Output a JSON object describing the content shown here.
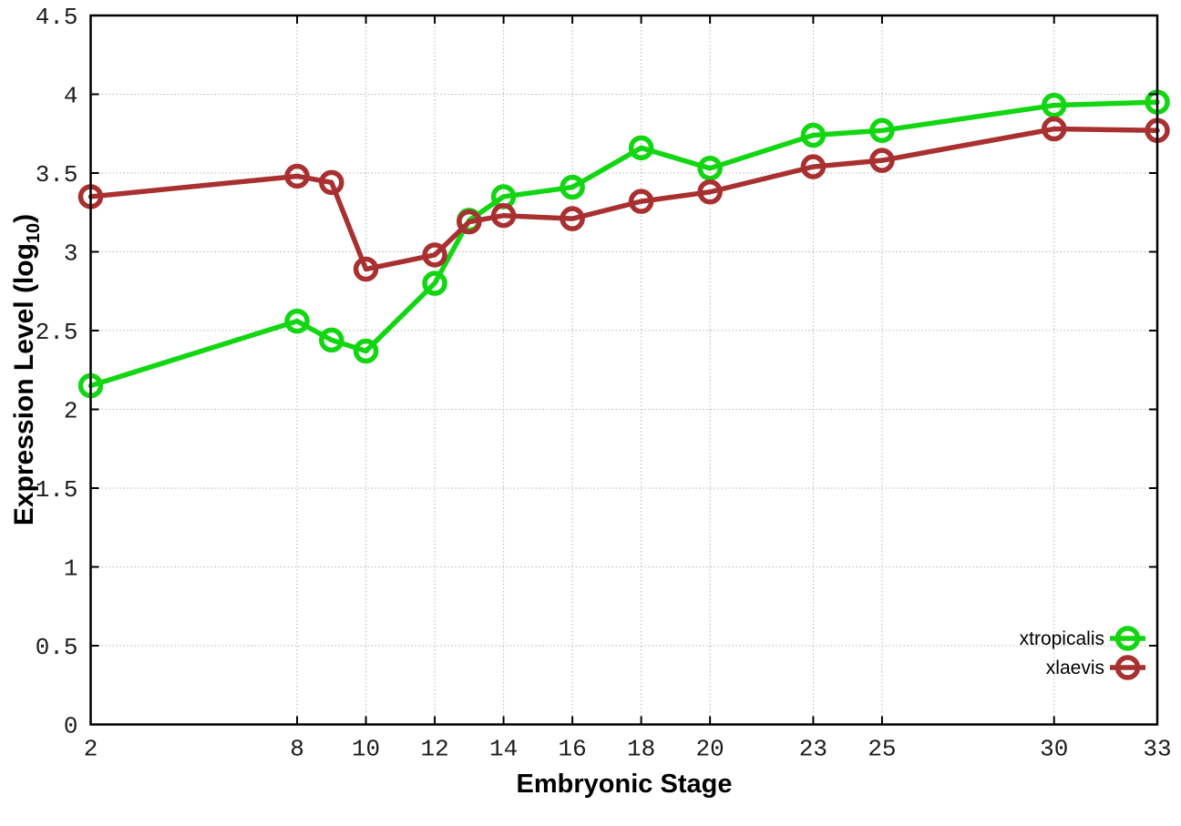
{
  "figure": {
    "background": "#ffffff",
    "xlabel": "Embryonic Stage",
    "ylabel_prefix": "Expression Level (log",
    "ylabel_sub": "10",
    "ylabel_suffix": ")"
  },
  "chart_data": {
    "type": "line",
    "title": "",
    "xlabel": "Embryonic Stage",
    "ylabel": "Expression Level (log10)",
    "grid": true,
    "legend_position": "bottom-right",
    "xlim": [
      2,
      33
    ],
    "ylim": [
      0,
      4.5
    ],
    "xticks": [
      2,
      8,
      10,
      12,
      14,
      16,
      18,
      20,
      23,
      25,
      30,
      33
    ],
    "yticks": [
      0,
      0.5,
      1,
      1.5,
      2,
      2.5,
      3,
      3.5,
      4,
      4.5
    ],
    "x": [
      2,
      8,
      9,
      10,
      12,
      13,
      14,
      16,
      18,
      20,
      23,
      25,
      30,
      33
    ],
    "series": [
      {
        "name": "xtropicalis",
        "color": "#12d612",
        "marker": "open-circle",
        "values": [
          2.15,
          2.56,
          2.44,
          2.37,
          2.8,
          3.2,
          3.35,
          3.41,
          3.66,
          3.53,
          3.74,
          3.77,
          3.93,
          3.95
        ]
      },
      {
        "name": "xlaevis",
        "color": "#a93030",
        "marker": "open-circle",
        "values": [
          3.35,
          3.48,
          3.44,
          2.89,
          2.98,
          3.19,
          3.23,
          3.21,
          3.32,
          3.38,
          3.54,
          3.58,
          3.78,
          3.77
        ]
      }
    ]
  }
}
